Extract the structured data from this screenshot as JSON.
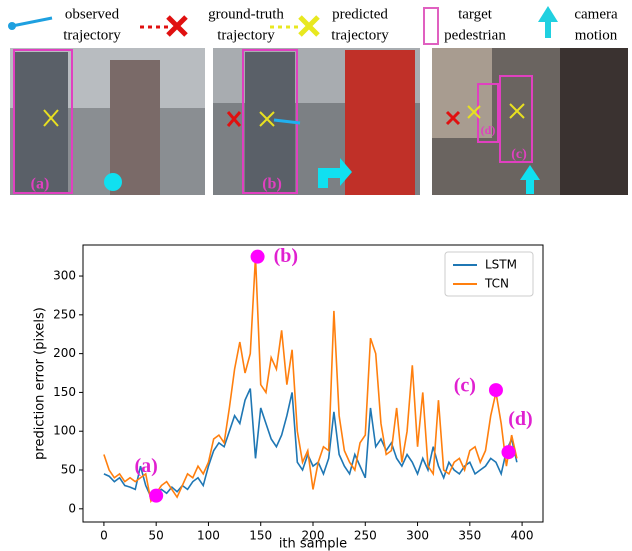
{
  "legend_items": [
    {
      "lines": [
        "observed",
        "trajectory"
      ]
    },
    {
      "lines": [
        "ground-truth",
        "trajectory"
      ]
    },
    {
      "lines": [
        "predicted",
        "trajectory"
      ]
    },
    {
      "lines": [
        "target",
        "pedestrian"
      ]
    },
    {
      "lines": [
        "camera",
        "motion"
      ]
    }
  ],
  "panels": [
    {
      "labels": [
        "(a)"
      ]
    },
    {
      "labels": [
        "(b)"
      ]
    },
    {
      "labels": [
        "(c)",
        "(d)"
      ]
    }
  ],
  "chart_data": {
    "type": "line",
    "x_label": "ith sample",
    "y_label": "prediction error (pixels)",
    "x": [
      0,
      5,
      10,
      15,
      20,
      25,
      30,
      35,
      40,
      45,
      50,
      55,
      60,
      65,
      70,
      75,
      80,
      85,
      90,
      95,
      100,
      105,
      110,
      115,
      120,
      125,
      130,
      135,
      140,
      145,
      150,
      155,
      160,
      165,
      170,
      175,
      180,
      185,
      190,
      195,
      200,
      205,
      210,
      215,
      220,
      225,
      230,
      235,
      240,
      245,
      250,
      255,
      260,
      265,
      270,
      275,
      280,
      285,
      290,
      295,
      300,
      305,
      310,
      315,
      320,
      325,
      330,
      335,
      340,
      345,
      350,
      355,
      360,
      365,
      370,
      375,
      380,
      385,
      390,
      395
    ],
    "series": [
      {
        "name": "LSTM",
        "color": "#1f77b4",
        "values": [
          45,
          42,
          35,
          40,
          30,
          28,
          25,
          55,
          30,
          15,
          20,
          25,
          20,
          28,
          22,
          30,
          25,
          35,
          40,
          30,
          55,
          75,
          85,
          80,
          100,
          120,
          110,
          140,
          155,
          65,
          130,
          110,
          90,
          80,
          95,
          120,
          150,
          60,
          50,
          70,
          55,
          60,
          45,
          65,
          125,
          70,
          55,
          45,
          70,
          55,
          40,
          130,
          80,
          90,
          75,
          85,
          65,
          55,
          70,
          60,
          45,
          65,
          50,
          80,
          55,
          40,
          60,
          50,
          45,
          55,
          60,
          45,
          50,
          55,
          65,
          60,
          45,
          75,
          90,
          60
        ]
      },
      {
        "name": "TCN",
        "color": "#ff7f0e",
        "values": [
          70,
          50,
          40,
          45,
          35,
          40,
          35,
          40,
          45,
          10,
          20,
          30,
          35,
          25,
          15,
          30,
          45,
          40,
          55,
          45,
          60,
          90,
          95,
          85,
          130,
          180,
          215,
          175,
          200,
          325,
          160,
          150,
          195,
          180,
          230,
          160,
          205,
          100,
          60,
          75,
          25,
          60,
          80,
          75,
          255,
          120,
          75,
          60,
          50,
          85,
          95,
          220,
          200,
          110,
          70,
          75,
          130,
          60,
          100,
          185,
          80,
          150,
          55,
          45,
          140,
          50,
          45,
          60,
          65,
          50,
          75,
          80,
          60,
          75,
          120,
          150,
          110,
          55,
          95,
          65
        ]
      }
    ],
    "xlim": [
      -20,
      420
    ],
    "ylim": [
      -17,
      340
    ],
    "xticks": [
      0,
      50,
      100,
      150,
      200,
      250,
      300,
      350,
      400
    ],
    "yticks": [
      0,
      50,
      100,
      150,
      200,
      250,
      300
    ],
    "grid": false,
    "legend": "upper right",
    "annotations": [
      {
        "text": "(a)",
        "x": 50,
        "y": 17
      },
      {
        "text": "(b)",
        "x": 147,
        "y": 325
      },
      {
        "text": "(c)",
        "x": 375,
        "y": 153
      },
      {
        "text": "(d)",
        "x": 387,
        "y": 73
      }
    ]
  }
}
